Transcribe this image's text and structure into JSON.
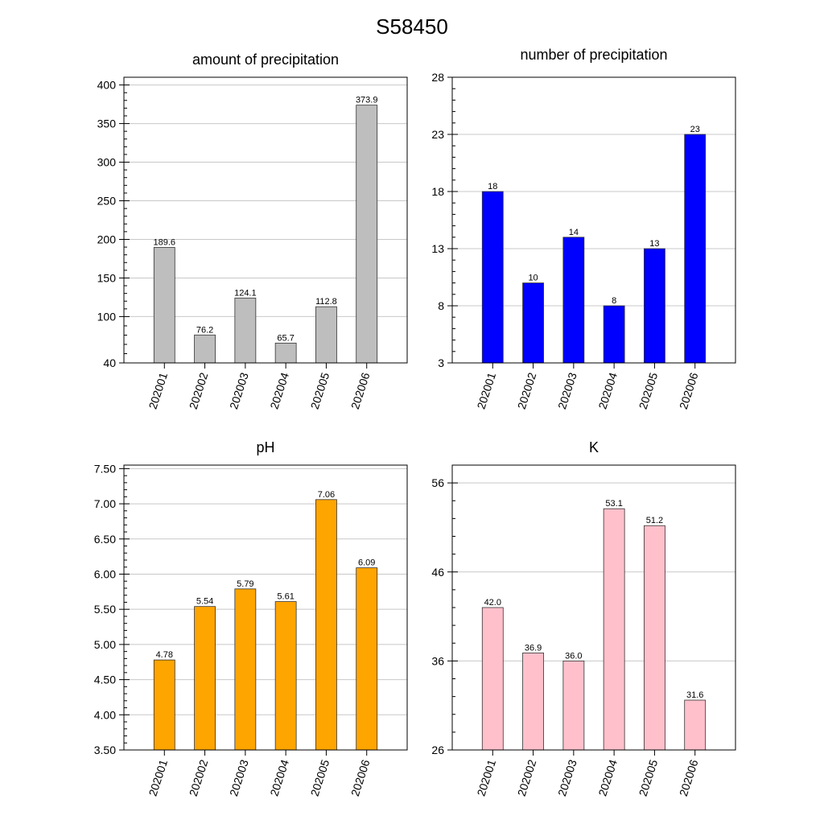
{
  "figure_title": "S58450",
  "chart_data": [
    {
      "type": "bar",
      "title": "amount of precipitation",
      "categories": [
        "202001",
        "202002",
        "202003",
        "202004",
        "202005",
        "202006"
      ],
      "values": [
        189.6,
        76.2,
        124.1,
        65.7,
        112.8,
        373.9
      ],
      "value_labels": [
        "189.6",
        "76.2",
        "124.1",
        "65.7",
        "112.8",
        "373.9"
      ],
      "ylim": [
        40,
        410
      ],
      "yticks": [
        "40",
        "100",
        "150",
        "200",
        "250",
        "300",
        "350",
        "400"
      ],
      "xlabel": "",
      "ylabel": "",
      "bar_color": "#bebebe",
      "grid": true
    },
    {
      "type": "bar",
      "title": "number of precipitation",
      "categories": [
        "202001",
        "202002",
        "202003",
        "202004",
        "202005",
        "202006"
      ],
      "values": [
        18,
        10,
        14,
        8,
        13,
        23
      ],
      "value_labels": [
        "18",
        "10",
        "14",
        "8",
        "13",
        "23"
      ],
      "ylim": [
        3,
        28
      ],
      "yticks": [
        "3",
        "8",
        "13",
        "18",
        "23",
        "28"
      ],
      "xlabel": "",
      "ylabel": "",
      "bar_color": "#0000ff",
      "grid": true
    },
    {
      "type": "bar",
      "title": "pH",
      "categories": [
        "202001",
        "202002",
        "202003",
        "202004",
        "202005",
        "202006"
      ],
      "values": [
        4.78,
        5.54,
        5.79,
        5.61,
        7.06,
        6.09
      ],
      "value_labels": [
        "4.78",
        "5.54",
        "5.79",
        "5.61",
        "7.06",
        "6.09"
      ],
      "ylim": [
        3.5,
        7.55
      ],
      "yticks": [
        "3.50",
        "4.00",
        "4.50",
        "5.00",
        "5.50",
        "6.00",
        "6.50",
        "7.00",
        "7.50"
      ],
      "xlabel": "",
      "ylabel": "",
      "bar_color": "#ffa500",
      "grid": true
    },
    {
      "type": "bar",
      "title": "K",
      "categories": [
        "202001",
        "202002",
        "202003",
        "202004",
        "202005",
        "202006"
      ],
      "values": [
        42.0,
        36.9,
        36.0,
        53.1,
        51.2,
        31.6
      ],
      "value_labels": [
        "42.0",
        "36.9",
        "36.0",
        "53.1",
        "51.2",
        "31.6"
      ],
      "ylim": [
        26,
        58
      ],
      "yticks": [
        "26",
        "36",
        "46",
        "56"
      ],
      "xlabel": "",
      "ylabel": "",
      "bar_color": "#ffc0cb",
      "grid": true
    }
  ]
}
